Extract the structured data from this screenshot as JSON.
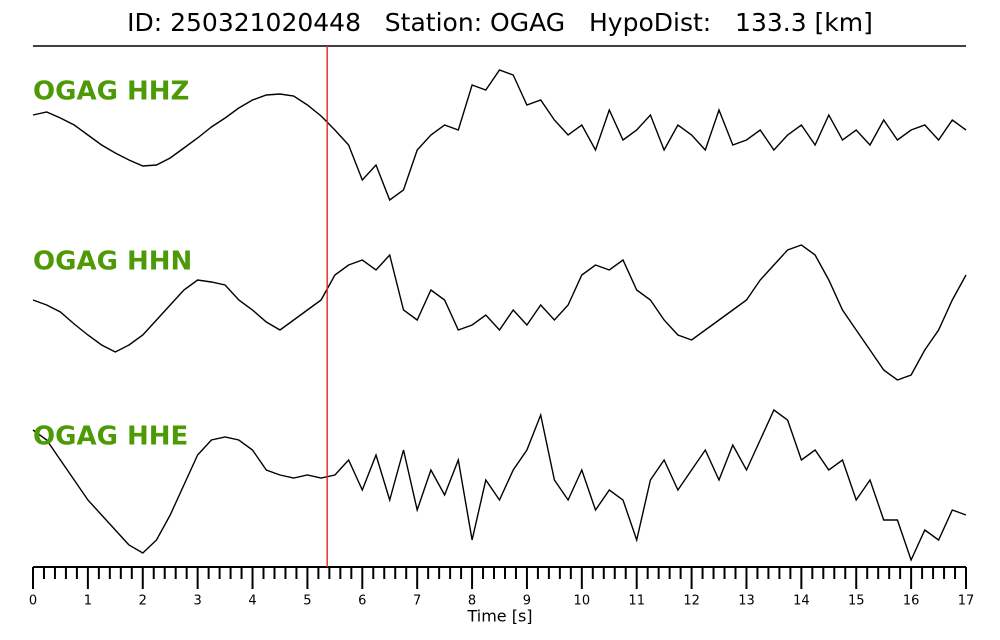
{
  "chart_data": {
    "type": "line",
    "title": "ID: 250321020448   Station: OGAG   HypoDist:   133.3 [km]",
    "xlabel": "Time [s]",
    "xlim": [
      0,
      17
    ],
    "xticks": [
      0,
      1,
      2,
      3,
      4,
      5,
      6,
      7,
      8,
      9,
      10,
      11,
      12,
      13,
      14,
      15,
      16,
      17
    ],
    "xminorticks": [
      0.2,
      0.4,
      0.6,
      0.8,
      1.2,
      1.4,
      1.6,
      1.8,
      2.2,
      2.4,
      2.6,
      2.8,
      3.2,
      3.4,
      3.6,
      3.8,
      4.2,
      4.4,
      4.6,
      4.8,
      5.2,
      5.4,
      5.6,
      5.8,
      6.2,
      6.4,
      6.6,
      6.8,
      7.2,
      7.4,
      7.6,
      7.8,
      8.2,
      8.4,
      8.6,
      8.8,
      9.2,
      9.4,
      9.6,
      9.8,
      10.2,
      10.4,
      10.6,
      10.8,
      11.2,
      11.4,
      11.6,
      11.8,
      12.2,
      12.4,
      12.6,
      12.8,
      13.2,
      13.4,
      13.6,
      13.8,
      14.2,
      14.4,
      14.6,
      14.8,
      15.2,
      15.4,
      15.6,
      15.8,
      16.2,
      16.4,
      16.6,
      16.8
    ],
    "ylim": [
      -90,
      90
    ],
    "label_color": "#4e9a06",
    "pick": {
      "x": 5.36,
      "color": "#e8231e"
    },
    "x": [
      0,
      0.25,
      0.5,
      0.75,
      1,
      1.25,
      1.5,
      1.75,
      2,
      2.25,
      2.5,
      2.75,
      3,
      3.25,
      3.5,
      3.75,
      4,
      4.25,
      4.5,
      4.75,
      5,
      5.25,
      5.5,
      5.75,
      6,
      6.25,
      6.5,
      6.75,
      7,
      7.25,
      7.5,
      7.75,
      8,
      8.25,
      8.5,
      8.75,
      9,
      9.25,
      9.5,
      9.75,
      10,
      10.25,
      10.5,
      10.75,
      11,
      11.25,
      11.5,
      11.75,
      12,
      12.25,
      12.5,
      12.75,
      13,
      13.25,
      13.5,
      13.75,
      14,
      14.25,
      14.5,
      14.75,
      15,
      15.25,
      15.5,
      15.75,
      16,
      16.25,
      16.5,
      16.75,
      17
    ],
    "series": [
      {
        "name": "OGAG HHZ",
        "color": "#000000",
        "values": [
          15,
          18,
          12,
          5,
          -5,
          -15,
          -23,
          -30,
          -36,
          -35,
          -28,
          -18,
          -8,
          3,
          12,
          22,
          30,
          35,
          36,
          34,
          25,
          14,
          0,
          -15,
          -50,
          -35,
          -70,
          -60,
          -20,
          -5,
          5,
          0,
          45,
          40,
          60,
          55,
          25,
          30,
          10,
          -5,
          5,
          -20,
          20,
          -10,
          0,
          15,
          -20,
          5,
          -5,
          -20,
          20,
          -15,
          -10,
          0,
          -20,
          -5,
          5,
          -15,
          15,
          -10,
          0,
          -15,
          10,
          -10,
          0,
          5,
          -10,
          10,
          0
        ]
      },
      {
        "name": "OGAG HHN",
        "color": "#000000",
        "values": [
          0,
          -5,
          -12,
          -24,
          -35,
          -45,
          -52,
          -45,
          -35,
          -20,
          -5,
          10,
          20,
          18,
          15,
          0,
          -10,
          -22,
          -30,
          -20,
          -10,
          0,
          25,
          35,
          40,
          30,
          45,
          -10,
          -20,
          10,
          0,
          -30,
          -25,
          -15,
          -30,
          -10,
          -25,
          -5,
          -20,
          -5,
          25,
          35,
          30,
          40,
          10,
          0,
          -20,
          -35,
          -40,
          -30,
          -20,
          -10,
          0,
          20,
          35,
          50,
          55,
          45,
          20,
          -10,
          -30,
          -50,
          -70,
          -80,
          -75,
          -50,
          -30,
          0,
          25
        ]
      },
      {
        "name": "OGAG HHE",
        "color": "#000000",
        "values": [
          45,
          35,
          15,
          -5,
          -25,
          -40,
          -55,
          -70,
          -78,
          -65,
          -40,
          -10,
          20,
          35,
          38,
          35,
          25,
          5,
          0,
          -3,
          0,
          -3,
          0,
          15,
          -15,
          20,
          -25,
          25,
          -35,
          5,
          -20,
          15,
          -65,
          -5,
          -25,
          5,
          25,
          60,
          -5,
          -25,
          5,
          -35,
          -15,
          -25,
          -65,
          -5,
          15,
          -15,
          5,
          25,
          -5,
          30,
          5,
          35,
          65,
          55,
          15,
          25,
          5,
          15,
          -25,
          -5,
          -45,
          -45,
          -85,
          -55,
          -65,
          -35,
          -40
        ]
      }
    ]
  }
}
